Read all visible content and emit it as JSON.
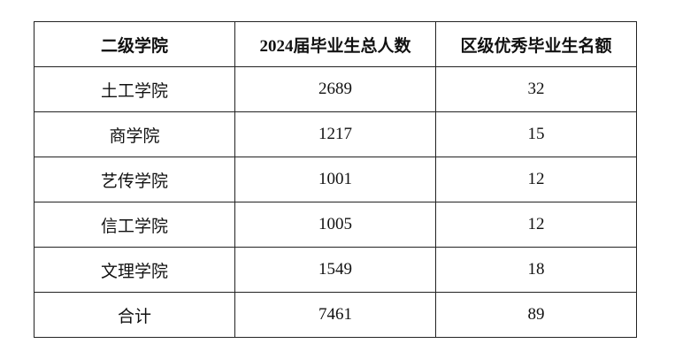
{
  "table": {
    "header": [
      "二级学院",
      "2024届毕业生总人数",
      "区级优秀毕业生名额"
    ],
    "rows": [
      [
        "土工学院",
        2689,
        32
      ],
      [
        "商学院",
        1217,
        15
      ],
      [
        "艺传学院",
        1001,
        12
      ],
      [
        "信工学院",
        1005,
        12
      ],
      [
        "文理学院",
        1549,
        18
      ],
      [
        "合计",
        7461,
        89
      ]
    ]
  }
}
